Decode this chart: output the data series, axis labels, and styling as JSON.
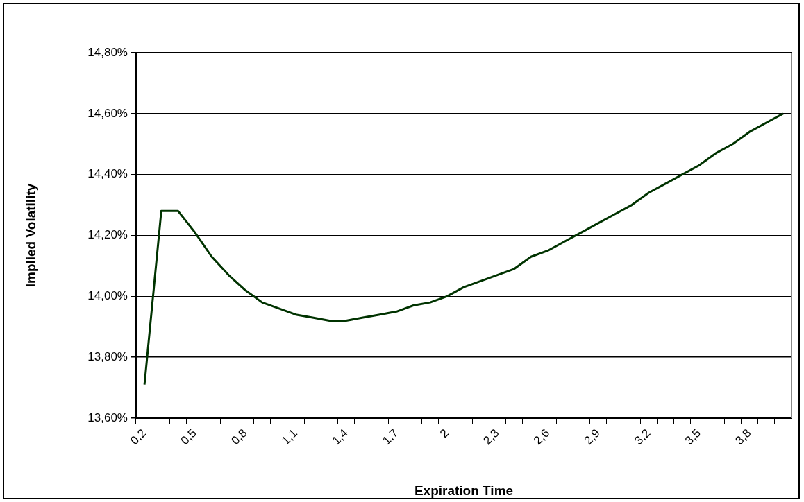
{
  "chart_data": {
    "type": "line",
    "xlabel": "Expiration Time",
    "ylabel": "Implied Volatility",
    "categories": [
      "0,2",
      null,
      null,
      "0,5",
      null,
      null,
      "0,8",
      null,
      null,
      "1,1",
      null,
      null,
      "1,4",
      null,
      null,
      "1,7",
      null,
      null,
      "2",
      null,
      null,
      "2,3",
      null,
      null,
      "2,6",
      null,
      null,
      "2,9",
      null,
      null,
      "3,2",
      null,
      null,
      "3,5",
      null,
      null,
      "3,8",
      null,
      null
    ],
    "series": [
      {
        "color": "#003300",
        "values": [
          13.71,
          14.28,
          14.28,
          14.21,
          14.13,
          14.07,
          14.02,
          13.98,
          13.96,
          13.94,
          13.93,
          13.92,
          13.92,
          13.93,
          13.94,
          13.95,
          13.97,
          13.98,
          14.0,
          14.03,
          14.05,
          14.07,
          14.09,
          14.13,
          14.15,
          14.18,
          14.21,
          14.24,
          14.27,
          14.3,
          14.34,
          14.37,
          14.4,
          14.43,
          14.47,
          14.5,
          14.54,
          14.57,
          14.6
        ]
      }
    ],
    "ylim": [
      13.6,
      14.8
    ],
    "yticks": [
      {
        "value": 13.6,
        "label": "13,60%"
      },
      {
        "value": 13.8,
        "label": "13,80%"
      },
      {
        "value": 14.0,
        "label": "14,00%"
      },
      {
        "value": 14.2,
        "label": "14,20%"
      },
      {
        "value": 14.4,
        "label": "14,40%"
      },
      {
        "value": 14.6,
        "label": "14,60%"
      },
      {
        "value": 14.8,
        "label": "14,80%"
      }
    ],
    "grid": "y",
    "legend": false,
    "marker": "none",
    "line_style": "solid"
  }
}
